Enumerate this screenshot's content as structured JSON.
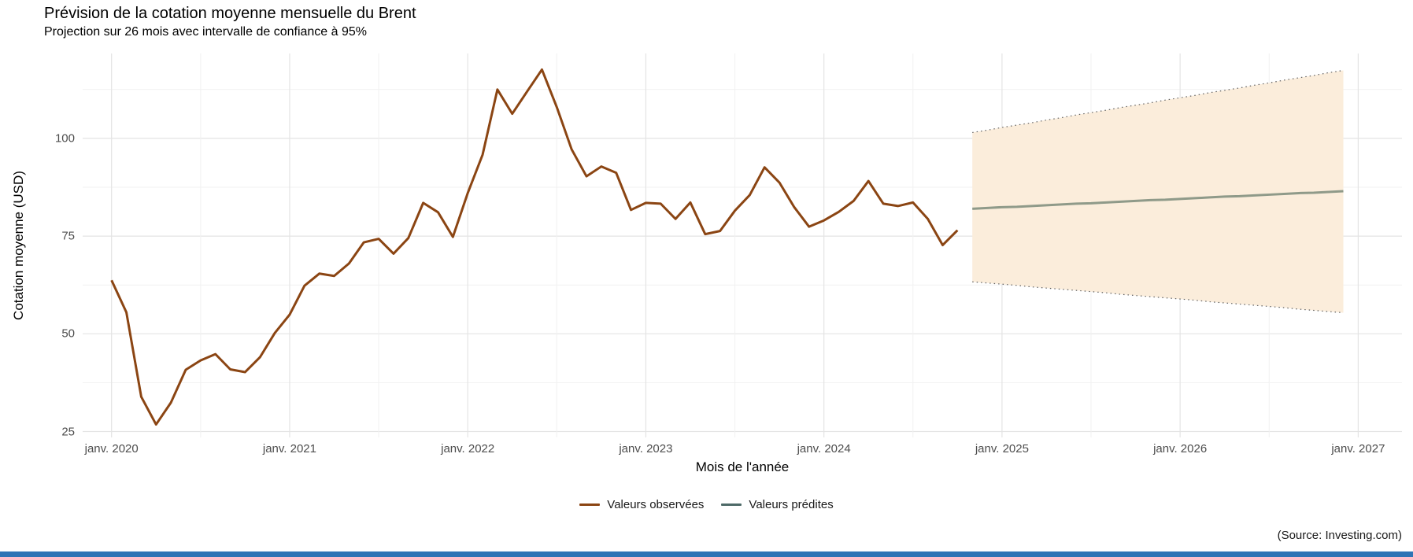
{
  "header": {
    "title": "Prévision de la cotation moyenne mensuelle du Brent",
    "subtitle": "Projection sur 26 mois avec intervalle de confiance à 95%"
  },
  "axes": {
    "x": {
      "title": "Mois de l'année",
      "tick_labels": [
        "janv. 2020",
        "janv. 2021",
        "janv. 2022",
        "janv. 2023",
        "janv. 2024",
        "janv. 2025",
        "janv. 2026",
        "janv. 2027"
      ]
    },
    "y": {
      "title": "Cotation moyenne (USD)",
      "tick_labels": [
        "25",
        "50",
        "75",
        "100"
      ]
    }
  },
  "legend": {
    "items": [
      {
        "label": "Valeurs observées",
        "color": "#8B4513"
      },
      {
        "label": "Valeurs prédites",
        "color": "#4E6A68"
      }
    ]
  },
  "caption": "(Source: Investing.com)",
  "colors": {
    "background": "#ffffff",
    "observed_line": "#8B4513",
    "predicted_line_plot": "#8F9A89",
    "predicted_legend": "#4E6A68",
    "ribbon_fill": "#FBEDDB",
    "ribbon_edge": "#5f5f5f",
    "major_gridline": "#E4E4E4",
    "minor_gridline": "#F1F1F1",
    "tick_text": "#4d4d4d",
    "bottom_bar": "#2E74B5"
  },
  "chart_data": {
    "type": "line",
    "title": "Prévision de la cotation moyenne mensuelle du Brent",
    "subtitle": "Projection sur 26 mois avec intervalle de confiance à 95%",
    "xlabel": "Mois de l'année",
    "ylabel": "Cotation moyenne (USD)",
    "x_start": "2020-01",
    "x_frequency": "monthly",
    "x_tick_years": [
      2020,
      2021,
      2022,
      2023,
      2024,
      2025,
      2026,
      2027
    ],
    "ylim": [
      23.5,
      121.5
    ],
    "y_major_gridlines": [
      25,
      50,
      75,
      100
    ],
    "y_minor_gridlines": [
      37.5,
      62.5,
      87.5,
      112.5
    ],
    "grid": true,
    "legend_position": "bottom",
    "series": [
      {
        "name": "Valeurs observées",
        "role": "observed",
        "color": "#8B4513",
        "start_index": 0,
        "months": "2020-01 to 2024-10",
        "values": [
          63.7,
          55.5,
          33.9,
          26.8,
          32.4,
          40.8,
          43.2,
          44.8,
          40.9,
          40.2,
          44.0,
          50.2,
          54.9,
          62.3,
          65.4,
          64.8,
          68.0,
          73.4,
          74.3,
          70.5,
          74.5,
          83.5,
          81.1,
          74.8,
          86.0,
          95.8,
          112.5,
          106.3,
          112.0,
          117.6,
          108.0,
          97.2,
          90.3,
          92.8,
          91.2,
          81.7,
          83.5,
          83.3,
          79.4,
          83.6,
          75.5,
          76.3,
          81.5,
          85.5,
          92.6,
          88.7,
          82.4,
          77.4,
          79.0,
          81.2,
          84.0,
          89.1,
          83.3,
          82.7,
          83.6,
          79.4,
          72.7,
          76.5
        ]
      },
      {
        "name": "Valeurs prédites",
        "role": "predicted",
        "color": "#8F9A89",
        "start_index": 58,
        "months": "2024-11 to 2026-12",
        "values": [
          82.0,
          82.2,
          82.4,
          82.5,
          82.7,
          82.9,
          83.1,
          83.3,
          83.4,
          83.6,
          83.8,
          84.0,
          84.2,
          84.3,
          84.5,
          84.7,
          84.9,
          85.1,
          85.2,
          85.4,
          85.6,
          85.8,
          86.0,
          86.1,
          86.3,
          86.5
        ]
      }
    ],
    "confidence_band": {
      "level": "95%",
      "start_index": 58,
      "fill": "#FBEDDB",
      "upper": [
        101.5,
        102.1,
        102.8,
        103.4,
        104.0,
        104.7,
        105.3,
        106.0,
        106.6,
        107.2,
        107.9,
        108.5,
        109.1,
        109.8,
        110.4,
        111.0,
        111.7,
        112.3,
        112.9,
        113.6,
        114.2,
        114.9,
        115.5,
        116.1,
        116.8,
        117.4
      ],
      "lower": [
        63.3,
        63.0,
        62.7,
        62.4,
        62.0,
        61.7,
        61.4,
        61.1,
        60.8,
        60.5,
        60.1,
        59.8,
        59.5,
        59.2,
        58.9,
        58.6,
        58.2,
        57.9,
        57.6,
        57.3,
        57.0,
        56.7,
        56.3,
        56.0,
        55.7,
        55.4
      ]
    }
  }
}
